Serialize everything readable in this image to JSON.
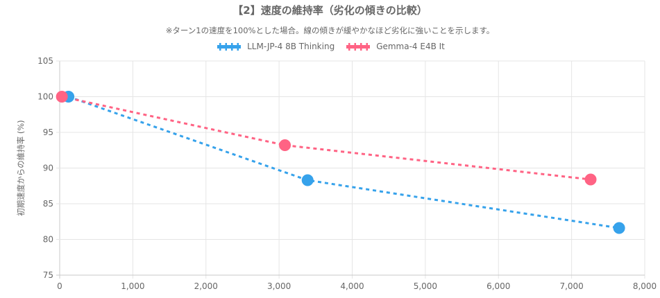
{
  "chart_data": {
    "type": "line",
    "title": "【2】速度の維持率（劣化の傾きの比較）",
    "subtitle": "※ターン1の速度を100%とした場合。線の傾きが緩やかなほど劣化に強いことを示します。",
    "xlabel": "",
    "ylabel": "初期速度からの維持率 (%)",
    "xlim": [
      0,
      8000
    ],
    "ylim": [
      75,
      105
    ],
    "x_ticks": [
      0,
      1000,
      2000,
      3000,
      4000,
      5000,
      6000,
      7000,
      8000
    ],
    "x_tick_labels": [
      "0",
      "1,000",
      "2,000",
      "3,000",
      "4,000",
      "5,000",
      "6,000",
      "7,000",
      "8,000"
    ],
    "y_ticks": [
      75,
      80,
      85,
      90,
      95,
      100,
      105
    ],
    "y_tick_labels": [
      "75",
      "80",
      "85",
      "90",
      "95",
      "100",
      "105"
    ],
    "grid": true,
    "legend_position": "top",
    "series": [
      {
        "name": "LLM-JP-4 8B Thinking",
        "color": "#36a2eb",
        "points": [
          {
            "x": 120,
            "y": 100
          },
          {
            "x": 3390,
            "y": 88.3
          },
          {
            "x": 7650,
            "y": 81.6
          }
        ]
      },
      {
        "name": "Gemma-4 E4B It",
        "color": "#ff6384",
        "points": [
          {
            "x": 30,
            "y": 100
          },
          {
            "x": 3080,
            "y": 93.2
          },
          {
            "x": 7260,
            "y": 88.4
          }
        ]
      }
    ]
  }
}
